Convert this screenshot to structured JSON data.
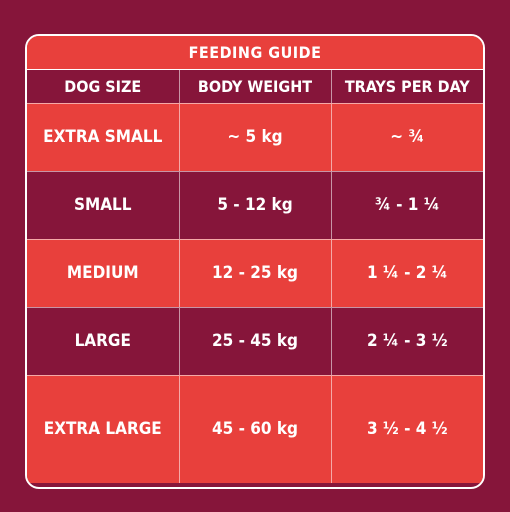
{
  "title": "FEEDING GUIDE",
  "columns": [
    "DOG SIZE",
    "BODY WEIGHT",
    "TRAYS PER DAY"
  ],
  "rows": [
    {
      "size": "EXTRA SMALL",
      "weight": "~ 5 kg",
      "trays": "~ ¾"
    },
    {
      "size": "SMALL",
      "weight": "5 - 12 kg",
      "trays": "¾ - 1 ¼"
    },
    {
      "size": "MEDIUM",
      "weight": "12 - 25 kg",
      "trays": "1 ¼ - 2 ¼"
    },
    {
      "size": "LARGE",
      "weight": "25 - 45 kg",
      "trays": "2 ¼ - 3 ½"
    },
    {
      "size": "EXTRA LARGE",
      "weight": "45 - 60 kg",
      "trays": "3 ½ - 4 ½"
    }
  ],
  "colors": {
    "background": "#86153a",
    "accent_red": "#e8403c",
    "text": "#ffffff"
  }
}
